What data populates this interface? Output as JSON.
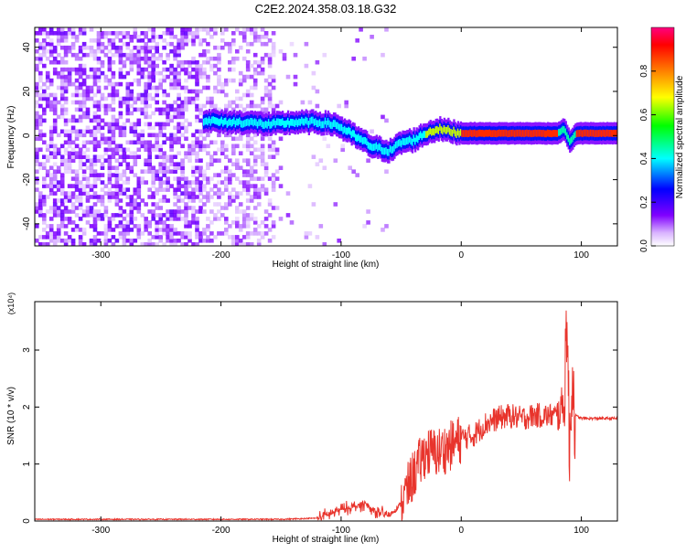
{
  "title": "C2E2.2024.358.03.18.G32",
  "colors": {
    "snr_line": "#e8342c",
    "axis": "#000000",
    "background": "#ffffff"
  },
  "chart_data": [
    {
      "type": "heatmap",
      "title": "C2E2.2024.358.03.18.G32",
      "xlabel": "Height of straight line (km)",
      "ylabel": "Frequency (Hz)",
      "xlim": [
        -355,
        130
      ],
      "ylim": [
        -50,
        49
      ],
      "x_ticks": [
        -300,
        -200,
        -100,
        0,
        100
      ],
      "y_ticks": [
        -40,
        -20,
        0,
        20,
        40
      ],
      "grid": false,
      "colorbar": {
        "label": "Normalized spectral amplitude",
        "range": [
          0,
          1
        ],
        "ticks": [
          0.0,
          0.2,
          0.4,
          0.6,
          0.8
        ],
        "colormap": [
          "#ffffff",
          "#8000ff",
          "#0000ff",
          "#00ffff",
          "#00ff00",
          "#ffff00",
          "#ff8000",
          "#ff0000",
          "#ff0080"
        ]
      },
      "ridge": {
        "description": "dominant frequency track",
        "x": [
          -215,
          -200,
          -180,
          -160,
          -140,
          -120,
          -105,
          -90,
          -75,
          -60,
          -50,
          -40,
          -30,
          -20,
          -10,
          0,
          20,
          40,
          60,
          80,
          85,
          90,
          95,
          110,
          130
        ],
        "y": [
          7,
          6,
          6,
          5,
          6,
          6,
          5,
          0,
          -5,
          -7,
          -3,
          -2,
          1,
          3,
          2,
          1,
          1,
          1,
          1,
          1,
          3,
          -3,
          1,
          1,
          1
        ]
      }
    },
    {
      "type": "line",
      "xlabel": "Height of straight line (km)",
      "ylabel": "SNR (10 * v/v)",
      "y_multiplier": "(x10⁴)",
      "xlim": [
        -355,
        130
      ],
      "ylim": [
        0,
        3.85
      ],
      "x_ticks": [
        -300,
        -200,
        -100,
        0,
        100
      ],
      "y_ticks": [
        0,
        1,
        2,
        3
      ],
      "grid": false,
      "series": [
        {
          "color": "#e8342c",
          "x": [
            -355,
            -300,
            -250,
            -200,
            -150,
            -120,
            -110,
            -100,
            -90,
            -80,
            -70,
            -60,
            -50,
            -40,
            -30,
            -20,
            -10,
            0,
            10,
            20,
            30,
            40,
            50,
            60,
            70,
            80,
            86,
            88,
            90,
            92,
            95,
            100,
            110,
            120,
            130
          ],
          "y": [
            0.03,
            0.03,
            0.03,
            0.03,
            0.03,
            0.05,
            0.12,
            0.2,
            0.25,
            0.3,
            0.15,
            0.1,
            0.3,
            0.8,
            1.2,
            1.2,
            1.3,
            1.45,
            1.5,
            1.7,
            1.8,
            1.85,
            1.8,
            1.85,
            1.85,
            1.85,
            2.1,
            3.9,
            1.0,
            2.6,
            1.85,
            1.8,
            1.8,
            1.8,
            1.8
          ]
        }
      ]
    }
  ]
}
